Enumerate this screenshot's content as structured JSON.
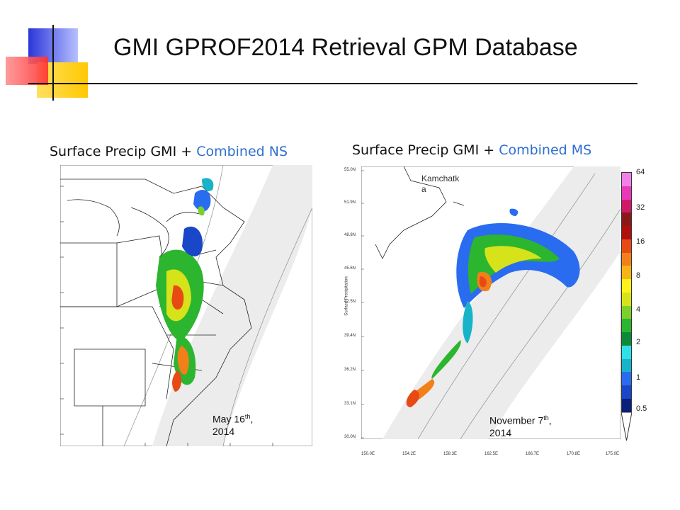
{
  "slide": {
    "title": "GMI  GPROF2014 Retrieval GPM Database"
  },
  "panels": [
    {
      "subtitle_prefix": "Surface Precip   GMI + ",
      "subtitle_highlight": "Combined NS",
      "date_main": "May 16",
      "date_sup": "th",
      "date_suffix": ",",
      "date_year": "2014"
    },
    {
      "subtitle_prefix": "Surface Precip   GMI + ",
      "subtitle_highlight": "Combined MS",
      "place_label_line1": "Kamchatk",
      "place_label_line2": "a",
      "date_main": "November 7",
      "date_sup": "th",
      "date_suffix": ",",
      "date_year": "2014",
      "lat_ticks": [
        "55.0N",
        "51.9N",
        "48.8N",
        "45.6N",
        "42.5N",
        "39.4N",
        "36.2N",
        "33.1N",
        "30.0N"
      ],
      "lon_ticks": [
        "150.0E",
        "154.2E",
        "158.3E",
        "162.5E",
        "166.7E",
        "170.8E",
        "175.0E"
      ],
      "y_axis_label": "Surface Precipitation"
    }
  ],
  "colorbar": {
    "labels": [
      "64",
      "32",
      "16",
      "8",
      "4",
      "2",
      "1",
      "0.5"
    ],
    "colors": [
      "#08207a",
      "#1a46c8",
      "#2a6cf0",
      "#17b3c8",
      "#2fe0e8",
      "#0c8a3a",
      "#2cb52e",
      "#7bd12a",
      "#d6e21a",
      "#fff21a",
      "#f6b515",
      "#f2801a",
      "#e84a14",
      "#b00f0f",
      "#8a1a1a",
      "#d01868",
      "#e83ab8",
      "#f080e8"
    ]
  },
  "colors": {
    "accent_blue": "#2f6fd0",
    "logo_blue": "#3a44e0",
    "logo_red": "#f04040",
    "logo_yellow": "#ffd520"
  }
}
